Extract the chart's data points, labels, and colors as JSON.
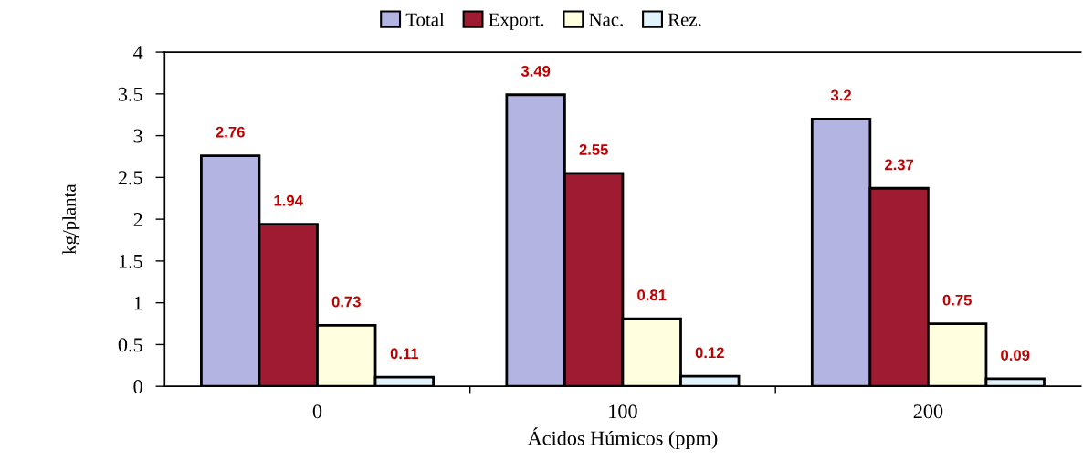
{
  "chart_data": {
    "type": "bar",
    "categories": [
      "0",
      "100",
      "200"
    ],
    "xlabel": "Ácidos Húmicos (ppm)",
    "ylabel": "kg/planta",
    "ylim": [
      0,
      4
    ],
    "yticks": [
      0,
      0.5,
      1,
      1.5,
      2,
      2.5,
      3,
      3.5,
      4
    ],
    "series": [
      {
        "name": "Total",
        "color": "#b4b4e2",
        "values": [
          2.76,
          3.49,
          3.2
        ]
      },
      {
        "name": "Export.",
        "color": "#9e1b32",
        "values": [
          1.94,
          2.55,
          2.37
        ]
      },
      {
        "name": "Nac.",
        "color": "#ffffe0",
        "values": [
          0.73,
          0.81,
          0.75
        ]
      },
      {
        "name": "Rez.",
        "color": "#e0f2fc",
        "values": [
          0.11,
          0.12,
          0.09
        ]
      }
    ],
    "data_labels": true,
    "legend": "top",
    "grid": false
  }
}
